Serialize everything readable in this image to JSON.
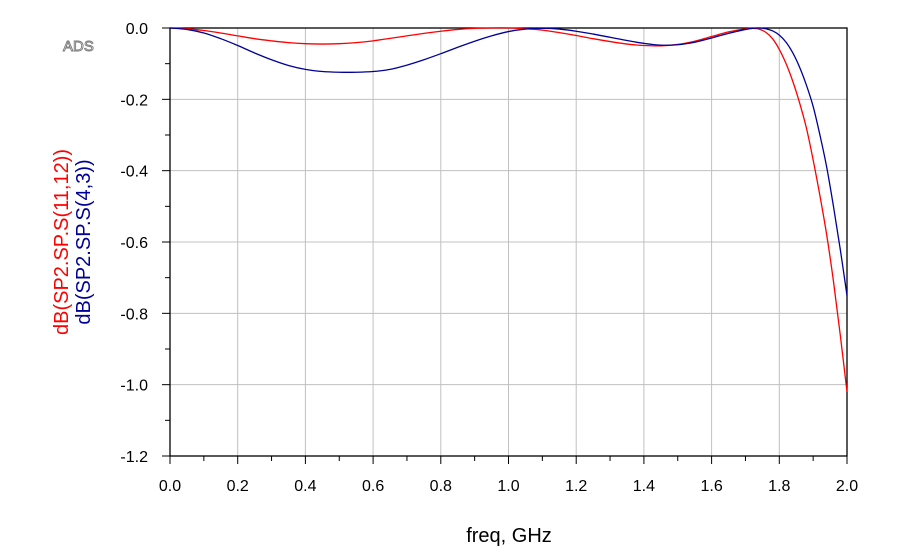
{
  "watermark": "ADS",
  "chart_data": {
    "type": "line",
    "xlabel": "freq, GHz",
    "xlim": [
      0.0,
      2.0
    ],
    "ylim": [
      -1.2,
      0.0
    ],
    "x_ticks": [
      "0.0",
      "0.2",
      "0.4",
      "0.6",
      "0.8",
      "1.0",
      "1.2",
      "1.4",
      "1.6",
      "1.8",
      "2.0"
    ],
    "y_ticks": [
      "0.0",
      "-0.2",
      "-0.4",
      "-0.6",
      "-0.8",
      "-1.0",
      "-1.2"
    ],
    "grid": true,
    "series": [
      {
        "name": "dB(SP2.SP.S(11,12))",
        "color": "#ff0000",
        "x": [
          0.0,
          0.05,
          0.1,
          0.15,
          0.2,
          0.25,
          0.3,
          0.35,
          0.4,
          0.45,
          0.5,
          0.55,
          0.6,
          0.65,
          0.7,
          0.75,
          0.8,
          0.85,
          0.9,
          0.95,
          1.0,
          1.05,
          1.1,
          1.15,
          1.2,
          1.25,
          1.3,
          1.35,
          1.4,
          1.45,
          1.5,
          1.55,
          1.6,
          1.65,
          1.7,
          1.72,
          1.74,
          1.76,
          1.78,
          1.8,
          1.82,
          1.84,
          1.86,
          1.88,
          1.9,
          1.92,
          1.94,
          1.96,
          1.98,
          2.0
        ],
        "y": [
          0.0,
          -0.002,
          -0.007,
          -0.014,
          -0.022,
          -0.03,
          -0.036,
          -0.041,
          -0.044,
          -0.045,
          -0.044,
          -0.041,
          -0.036,
          -0.029,
          -0.022,
          -0.015,
          -0.009,
          -0.004,
          -0.001,
          0.0,
          0.0,
          -0.002,
          -0.006,
          -0.013,
          -0.021,
          -0.03,
          -0.038,
          -0.045,
          -0.049,
          -0.05,
          -0.046,
          -0.037,
          -0.024,
          -0.011,
          -0.002,
          -0.001,
          -0.003,
          -0.012,
          -0.03,
          -0.06,
          -0.1,
          -0.15,
          -0.21,
          -0.28,
          -0.37,
          -0.47,
          -0.58,
          -0.71,
          -0.86,
          -1.02
        ]
      },
      {
        "name": "dB(SP2.SP.S(4,3))",
        "color": "#000099",
        "x": [
          0.0,
          0.05,
          0.1,
          0.15,
          0.2,
          0.25,
          0.3,
          0.35,
          0.4,
          0.45,
          0.5,
          0.55,
          0.6,
          0.65,
          0.7,
          0.75,
          0.8,
          0.85,
          0.9,
          0.95,
          1.0,
          1.05,
          1.1,
          1.15,
          1.2,
          1.25,
          1.3,
          1.35,
          1.4,
          1.45,
          1.5,
          1.55,
          1.6,
          1.65,
          1.7,
          1.72,
          1.74,
          1.76,
          1.78,
          1.8,
          1.82,
          1.84,
          1.86,
          1.88,
          1.9,
          1.92,
          1.94,
          1.96,
          1.98,
          2.0
        ],
        "y": [
          0.0,
          -0.004,
          -0.014,
          -0.03,
          -0.049,
          -0.07,
          -0.089,
          -0.105,
          -0.116,
          -0.122,
          -0.124,
          -0.124,
          -0.122,
          -0.116,
          -0.104,
          -0.089,
          -0.072,
          -0.054,
          -0.037,
          -0.022,
          -0.01,
          -0.003,
          -0.001,
          -0.003,
          -0.009,
          -0.017,
          -0.026,
          -0.035,
          -0.043,
          -0.048,
          -0.047,
          -0.04,
          -0.028,
          -0.015,
          -0.004,
          -0.001,
          0.0,
          -0.002,
          -0.008,
          -0.02,
          -0.04,
          -0.07,
          -0.11,
          -0.16,
          -0.22,
          -0.3,
          -0.39,
          -0.5,
          -0.62,
          -0.75
        ]
      }
    ]
  }
}
